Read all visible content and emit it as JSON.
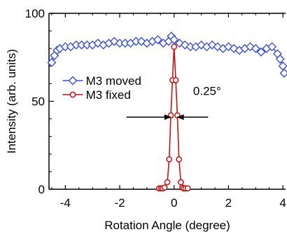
{
  "chart_data": {
    "type": "line",
    "title": "",
    "xlabel": "Rotation Angle (degree)",
    "ylabel": "Intensity (arb. units)",
    "xlim": [
      -4.6,
      4.1
    ],
    "ylim": [
      0,
      100
    ],
    "x_ticks": [
      -4,
      -2,
      0,
      2,
      4
    ],
    "y_ticks": [
      0,
      50,
      100
    ],
    "x_tick_labels": [
      "-4",
      "-2",
      "0",
      "2",
      "4"
    ],
    "y_tick_labels": [
      "0",
      "50",
      "100"
    ],
    "grid": false,
    "legend_position": "center-left",
    "annotation": {
      "text": "0.25°"
    },
    "series": [
      {
        "name": "M3 moved",
        "color": "#3b4fe0",
        "marker": "diamond",
        "x": [
          -4.5,
          -4.4,
          -4.3,
          -4.2,
          -4.0,
          -3.8,
          -3.6,
          -3.4,
          -3.2,
          -3.0,
          -2.8,
          -2.6,
          -2.4,
          -2.2,
          -2.0,
          -1.8,
          -1.6,
          -1.4,
          -1.2,
          -1.0,
          -0.8,
          -0.6,
          -0.4,
          -0.2,
          -0.1,
          0.0,
          0.2,
          0.4,
          0.6,
          0.8,
          1.0,
          1.2,
          1.4,
          1.6,
          1.8,
          2.0,
          2.2,
          2.4,
          2.6,
          2.8,
          3.0,
          3.2,
          3.4,
          3.6,
          3.8,
          3.9,
          4.0,
          4.05
        ],
        "values": [
          72,
          76,
          79,
          80,
          81,
          81,
          82,
          82,
          82,
          82,
          83,
          82,
          83,
          84,
          83,
          83,
          83,
          84,
          84,
          83,
          84,
          85,
          83,
          84,
          87,
          85,
          83,
          82,
          81,
          81,
          82,
          81,
          82,
          81,
          80,
          81,
          80,
          79,
          80,
          81,
          80,
          78,
          80,
          81,
          77,
          74,
          70,
          66
        ]
      },
      {
        "name": "M3 fixed",
        "color": "#cc1111",
        "marker": "circle",
        "x": [
          -0.55,
          -0.48,
          -0.42,
          -0.35,
          -0.25,
          -0.18,
          -0.12,
          -0.06,
          0.0,
          0.06,
          0.12,
          0.18,
          0.25,
          0.3,
          0.35,
          0.42,
          0.5
        ],
        "values": [
          0.5,
          0.5,
          0.5,
          1,
          4,
          17,
          42,
          62,
          81,
          62,
          42,
          17,
          4,
          1,
          0.5,
          0.5,
          0.5
        ]
      }
    ]
  }
}
